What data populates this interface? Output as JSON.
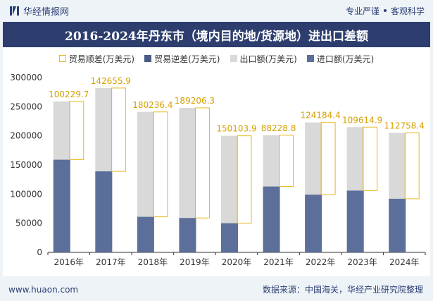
{
  "header": {
    "brand_name": "华经情报网",
    "tag_left": "专业严谨",
    "tag_right": "客观科学"
  },
  "title": "2016-2024年丹东市（境内目的地/货源地）进出口差额",
  "footer": {
    "url": "www.huaon.com",
    "source": "数据来源：中国海关，华经产业研究院整理"
  },
  "colors": {
    "export": "#d9d9d9",
    "import": "#5b6f9a",
    "surplus_border": "#e8b818",
    "label": "#d4a000"
  },
  "chart_data": {
    "type": "bar",
    "title": "2016-2024年丹东市（境内目的地/货源地）进出口差额",
    "categories": [
      "2016年",
      "2017年",
      "2018年",
      "2019年",
      "2020年",
      "2021年",
      "2022年",
      "2023年",
      "2024年"
    ],
    "series": [
      {
        "name": "贸易顺差(万美元)",
        "values": [
          100229.7,
          142655.9,
          180236.4,
          189206.3,
          150103.9,
          88228.8,
          124184.4,
          109614.9,
          112758.4
        ]
      },
      {
        "name": "贸易逆差(万美元)",
        "values": [
          0,
          0,
          0,
          0,
          0,
          0,
          0,
          0,
          0
        ]
      },
      {
        "name": "出口额(万美元)",
        "values": [
          259000,
          282000,
          241000,
          248000,
          200000,
          201000,
          223000,
          215000,
          205000
        ]
      },
      {
        "name": "进口额(万美元)",
        "values": [
          159000,
          139000,
          61000,
          59000,
          50000,
          113000,
          99000,
          106000,
          92000
        ]
      }
    ],
    "surplus_labels": [
      "100229.7",
      "142655.9",
      "180236.4",
      "189206.3",
      "150103.9",
      "88228.8",
      "124184.4",
      "109614.9",
      "112758.4"
    ],
    "y_ticks": [
      "0",
      "50000",
      "100000",
      "150000",
      "200000",
      "250000",
      "300000"
    ],
    "ylim": [
      0,
      300000
    ],
    "legend_position": "top-center"
  }
}
